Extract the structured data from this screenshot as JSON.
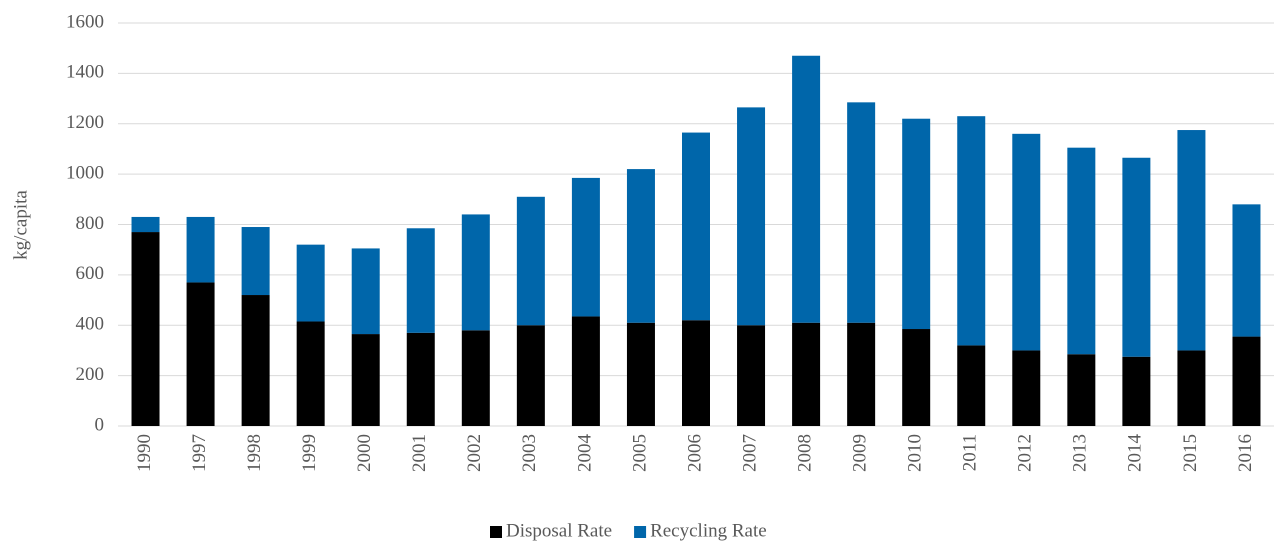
{
  "chart_data": {
    "type": "stacked_bar",
    "y_label": "kg/capita",
    "categories": [
      "1990",
      "1997",
      "1998",
      "1999",
      "2000",
      "2001",
      "2002",
      "2003",
      "2004",
      "2005",
      "2006",
      "2007",
      "2008",
      "2009",
      "2010",
      "2011",
      "2012",
      "2013",
      "2014",
      "2015",
      "2016"
    ],
    "series": [
      {
        "name": "Disposal Rate",
        "color": "#000000",
        "values": [
          770,
          570,
          520,
          415,
          365,
          370,
          380,
          400,
          435,
          410,
          420,
          400,
          410,
          410,
          385,
          320,
          300,
          285,
          275,
          300,
          355
        ]
      },
      {
        "name": "Recycling Rate",
        "color": "#0066aa",
        "values": [
          60,
          260,
          270,
          305,
          340,
          415,
          460,
          510,
          550,
          610,
          745,
          865,
          1060,
          875,
          835,
          910,
          860,
          820,
          790,
          875,
          525
        ]
      }
    ],
    "ylim": [
      0,
      1600
    ],
    "yticks": [
      0,
      200,
      400,
      600,
      800,
      1000,
      1200,
      1400,
      1600
    ],
    "grid": true,
    "legend": "bottom"
  }
}
